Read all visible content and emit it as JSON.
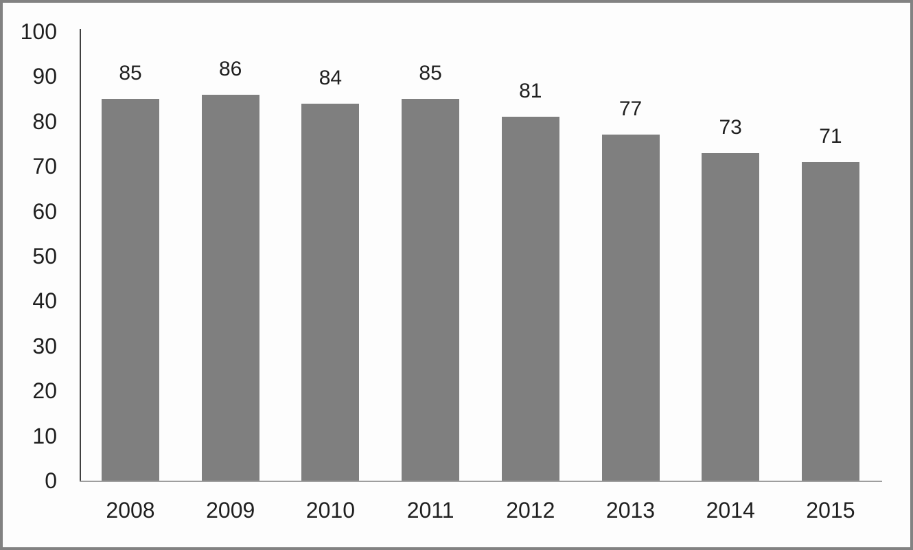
{
  "chart_data": {
    "type": "bar",
    "title": "",
    "xlabel": "",
    "ylabel": "",
    "categories": [
      "2008",
      "2009",
      "2010",
      "2011",
      "2012",
      "2013",
      "2014",
      "2015"
    ],
    "values": [
      85,
      86,
      84,
      85,
      81,
      77,
      73,
      71
    ],
    "data_labels": [
      "85",
      "86",
      "84",
      "85",
      "81",
      "77",
      "73",
      "71"
    ],
    "ylim": [
      0,
      100
    ],
    "yticks": [
      0,
      10,
      20,
      30,
      40,
      50,
      60,
      70,
      80,
      90,
      100
    ],
    "grid": false,
    "legend_position": "none",
    "colors": {
      "bar_fill": "#7f7f7f",
      "y_axis_line": "#404040",
      "baseline": "#9e9e9e",
      "text": "#1f1f1f",
      "frame_border": "#828282",
      "background": "#fdfdfd"
    }
  }
}
